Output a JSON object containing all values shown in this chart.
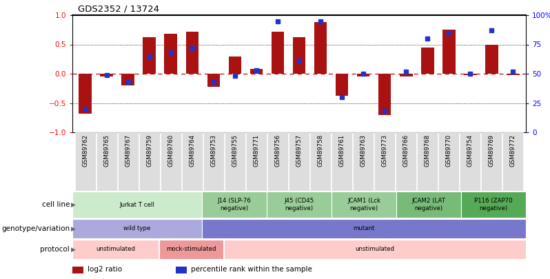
{
  "title": "GDS2352 / 13724",
  "samples": [
    "GSM89762",
    "GSM89765",
    "GSM89767",
    "GSM89759",
    "GSM89760",
    "GSM89764",
    "GSM89753",
    "GSM89755",
    "GSM89771",
    "GSM89756",
    "GSM89757",
    "GSM89758",
    "GSM89761",
    "GSM89763",
    "GSM89773",
    "GSM89766",
    "GSM89768",
    "GSM89770",
    "GSM89754",
    "GSM89769",
    "GSM89772"
  ],
  "log2_ratio": [
    -0.68,
    -0.05,
    -0.2,
    0.62,
    0.68,
    0.72,
    -0.22,
    0.3,
    0.08,
    0.72,
    0.62,
    0.88,
    -0.38,
    -0.05,
    -0.7,
    -0.05,
    0.45,
    0.75,
    -0.02,
    0.5,
    -0.02
  ],
  "percentile": [
    20,
    49,
    43,
    65,
    68,
    72,
    43,
    48,
    53,
    95,
    61,
    95,
    30,
    50,
    18,
    52,
    80,
    85,
    50,
    87,
    52
  ],
  "ylim_left": [
    -1,
    1
  ],
  "ylim_right": [
    0,
    100
  ],
  "yticks_left": [
    -1,
    -0.5,
    0,
    0.5,
    1
  ],
  "yticks_right": [
    0,
    25,
    50,
    75,
    100
  ],
  "ytick_labels_right": [
    "0",
    "25",
    "50",
    "75",
    "100%"
  ],
  "bar_color": "#AA1111",
  "point_color": "#2233CC",
  "zero_line_color": "#CC0000",
  "cell_lines": [
    {
      "label": "Jurkat T cell",
      "start": 0,
      "end": 6,
      "color": "#CCEACC"
    },
    {
      "label": "J14 (SLP-76\nnegative)",
      "start": 6,
      "end": 9,
      "color": "#99CC99"
    },
    {
      "label": "J45 (CD45\nnegative)",
      "start": 9,
      "end": 12,
      "color": "#99CC99"
    },
    {
      "label": "JCAM1 (Lck\nnegative)",
      "start": 12,
      "end": 15,
      "color": "#99CC99"
    },
    {
      "label": "JCAM2 (LAT\nnegative)",
      "start": 15,
      "end": 18,
      "color": "#77BB77"
    },
    {
      "label": "P116 (ZAP70\nnegative)",
      "start": 18,
      "end": 21,
      "color": "#55AA55"
    }
  ],
  "genotype_rows": [
    {
      "label": "wild type",
      "start": 0,
      "end": 6,
      "color": "#AAAADD"
    },
    {
      "label": "mutant",
      "start": 6,
      "end": 21,
      "color": "#7777CC"
    }
  ],
  "protocol_rows": [
    {
      "label": "unstimulated",
      "start": 0,
      "end": 4,
      "color": "#FFCCCC"
    },
    {
      "label": "mock-stimulated",
      "start": 4,
      "end": 7,
      "color": "#EE9999"
    },
    {
      "label": "unstimulated",
      "start": 7,
      "end": 21,
      "color": "#FFCCCC"
    }
  ],
  "row_labels": [
    "cell line",
    "genotype/variation",
    "protocol"
  ],
  "legend_items": [
    {
      "color": "#AA1111",
      "label": "log2 ratio"
    },
    {
      "color": "#2233CC",
      "label": "percentile rank within the sample"
    }
  ]
}
